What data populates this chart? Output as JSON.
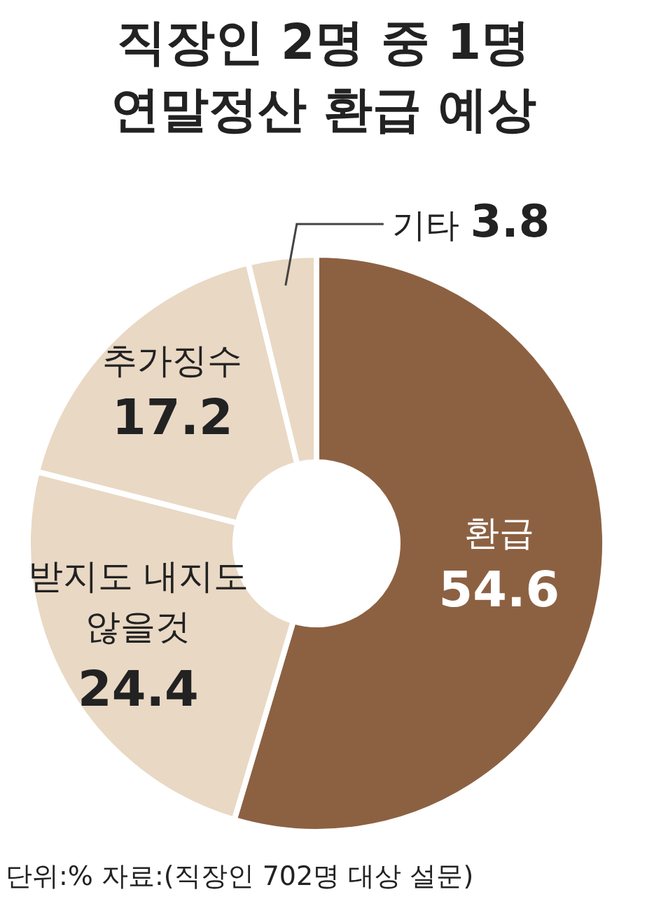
{
  "chart_data": {
    "type": "donut",
    "title": "직장인 2명 중 1명\n연말정산 환급 예상",
    "categories": [
      "환급",
      "받지도 내지도\n않을것",
      "추가징수",
      "기타"
    ],
    "values": [
      54.6,
      24.4,
      17.2,
      3.8
    ],
    "colors": [
      "#8c6142",
      "#e9d8c4",
      "#e9d8c4",
      "#e9d8c4"
    ],
    "data_labels": true,
    "annotations": [
      "단위:%  자료:(직장인 702명 대상 설문)"
    ]
  }
}
